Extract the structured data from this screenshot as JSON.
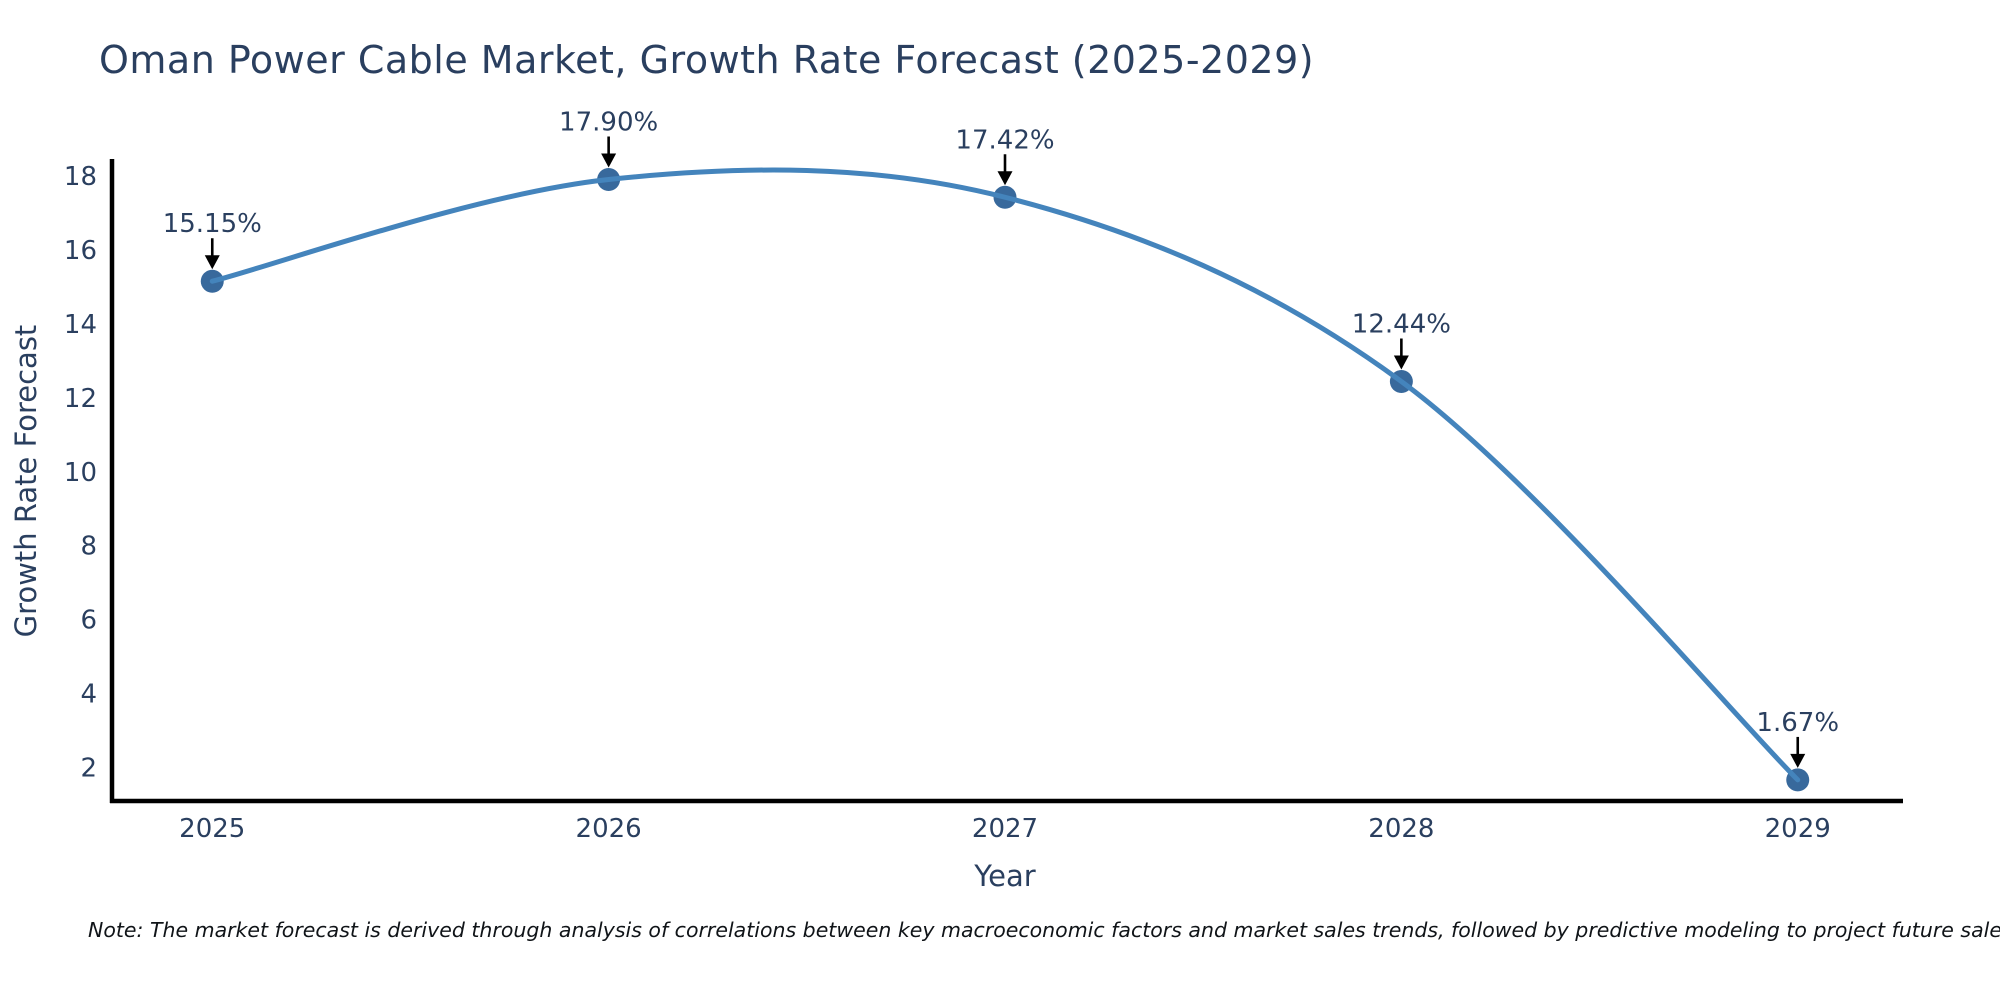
{
  "title": "Oman Power Cable Market, Growth Rate Forecast (2025-2029)",
  "note": "Note: The market forecast is derived through analysis of correlations between key macroeconomic factors and market sales trends, followed by predictive modeling to project future sales",
  "chart_data": {
    "type": "line",
    "title": "Oman Power Cable Market, Growth Rate Forecast (2025-2029)",
    "x": [
      2025,
      2026,
      2027,
      2028,
      2029
    ],
    "series": [
      {
        "name": "Growth Rate Forecast",
        "values": [
          15.15,
          17.9,
          17.42,
          12.44,
          1.67
        ]
      }
    ],
    "point_labels": [
      "15.15%",
      "17.90%",
      "17.42%",
      "12.44%",
      "1.67%"
    ],
    "xlabel": "Year",
    "ylabel": "Growth Rate Forecast",
    "xticks": [
      "2025",
      "2026",
      "2027",
      "2028",
      "2029"
    ],
    "yticks": [
      2,
      4,
      6,
      8,
      10,
      12,
      14,
      16,
      18
    ],
    "xlim": [
      2024.742,
      2029.258
    ],
    "ylim": [
      1.1,
      18.4
    ],
    "line_shape": "spline",
    "grid": false,
    "legend": "none",
    "colors": {
      "line": "#4484bc",
      "marker": "#38699c",
      "axis_line": "#000000",
      "tick_text": "#2a3f5f",
      "axis_title_text": "#2a3f5f",
      "annotation_text": "#2a3f5f",
      "annotation_arrow": "#000000",
      "title_text": "#2a3f5f",
      "note_text": "#101418",
      "background": "#ffffff"
    }
  }
}
